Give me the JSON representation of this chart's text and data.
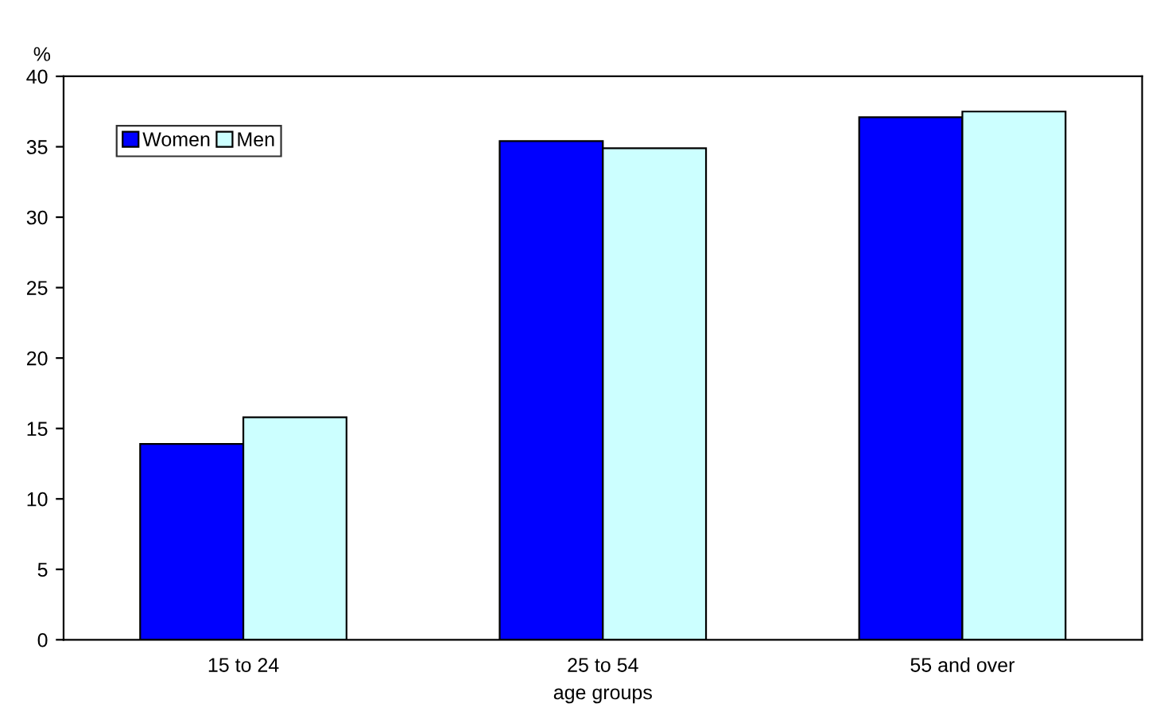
{
  "chart_data": {
    "type": "bar",
    "ylabel": "%",
    "xlabel": "age groups",
    "categories": [
      "15 to 24",
      "25 to 54",
      "55 and over"
    ],
    "series": [
      {
        "name": "Women",
        "color": "#0000ff",
        "values": [
          13.9,
          35.4,
          37.1
        ]
      },
      {
        "name": "Men",
        "color": "#ccffff",
        "values": [
          15.8,
          34.9,
          37.5
        ]
      }
    ],
    "ylim": [
      0,
      40
    ],
    "yticks": [
      0,
      5,
      10,
      15,
      20,
      25,
      30,
      35,
      40
    ],
    "grid": false,
    "legend": "top left"
  }
}
